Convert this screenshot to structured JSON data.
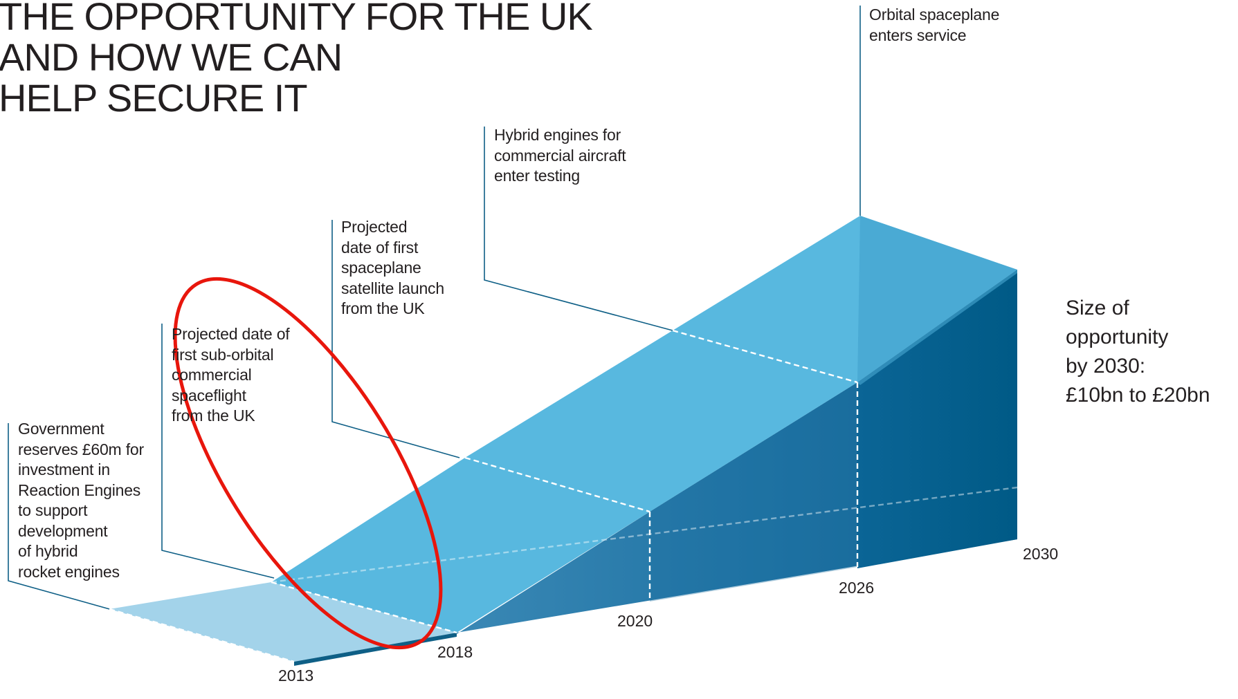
{
  "title": {
    "lines": [
      "THE OPPORTUNITY FOR THE UK",
      "AND HOW WE CAN",
      "HELP SECURE IT"
    ]
  },
  "callouts": {
    "government": [
      "Government",
      "reserves £60m for",
      "investment in",
      "Reaction Engines",
      "to support",
      "development",
      "of hybrid",
      "rocket engines"
    ],
    "suborbital": [
      "Projected date of",
      "first sub-orbital",
      "commercial",
      "spaceflight",
      "from the UK"
    ],
    "satellite": [
      "Projected",
      "date of first",
      "spaceplane",
      "satellite launch",
      "from the UK"
    ],
    "hybrid_engines": [
      "Hybrid engines for",
      "commercial aircraft",
      "enter testing"
    ],
    "orbital": [
      "Orbital spaceplane",
      "enters service"
    ]
  },
  "size_of_opportunity": [
    "Size of",
    "opportunity",
    "by 2030:",
    "£10bn to £20bn"
  ],
  "year_labels": {
    "y2013": "2013",
    "y2018": "2018",
    "y2020": "2020",
    "y2026": "2026",
    "y2030": "2030"
  },
  "colors": {
    "top_face": "#58b8df",
    "top_face_light": "#a3d3ea",
    "side_face": "#1a6d9c",
    "side_face_dark": "#0b5883",
    "end_face": "#006391",
    "leader_line": "#0e5f86",
    "annotation_circle": "#e8160c"
  }
}
